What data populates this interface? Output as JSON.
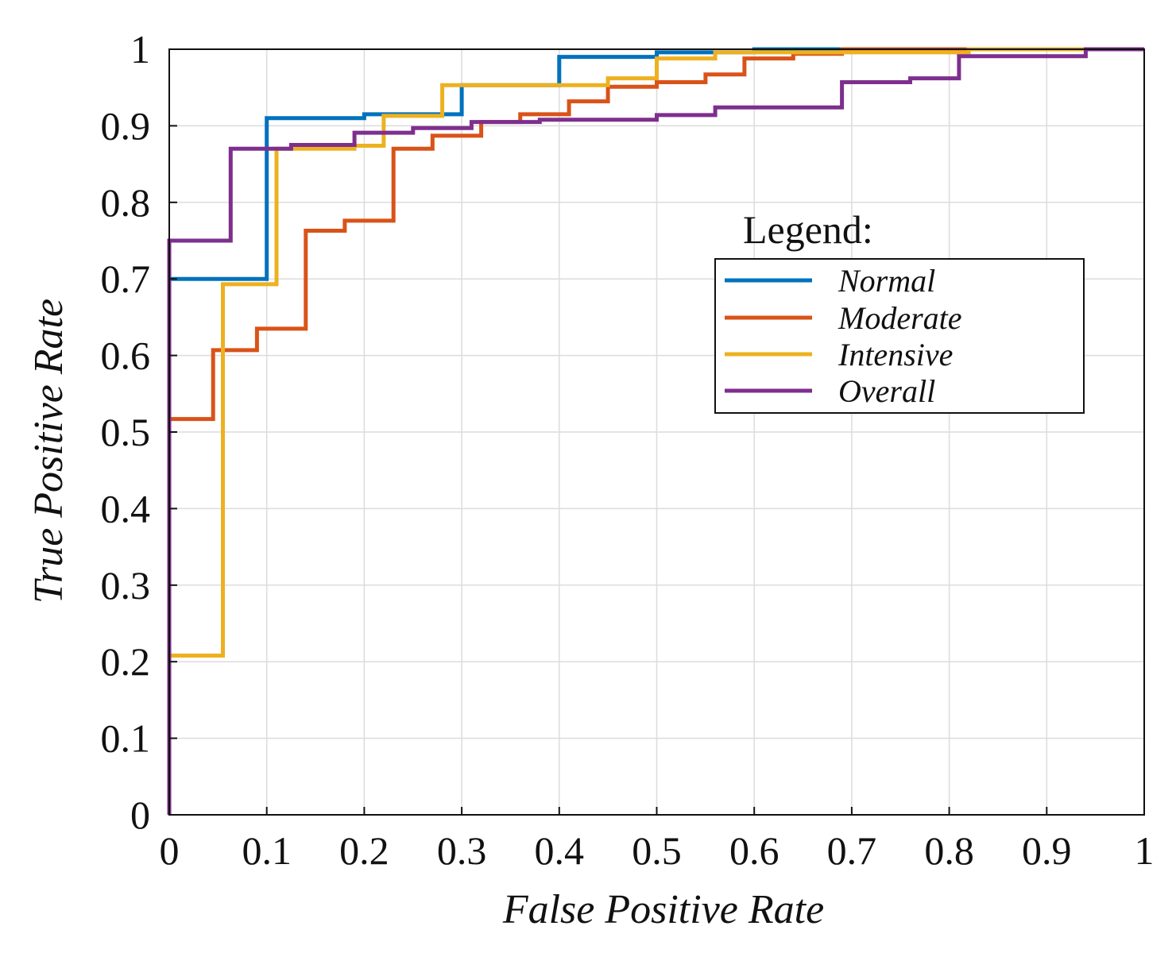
{
  "chart_data": {
    "type": "line",
    "title": "",
    "xlabel": "False Positive Rate",
    "ylabel": "True Positive Rate",
    "xlim": [
      0,
      1
    ],
    "ylim": [
      0,
      1
    ],
    "grid": true,
    "x_ticks": [
      0,
      0.1,
      0.2,
      0.3,
      0.4,
      0.5,
      0.6,
      0.7,
      0.8,
      0.9,
      1
    ],
    "x_tick_labels": [
      "0",
      "0.1",
      "0.2",
      "0.3",
      "0.4",
      "0.5",
      "0.6",
      "0.7",
      "0.8",
      "0.9",
      "1"
    ],
    "y_ticks": [
      0,
      0.1,
      0.2,
      0.3,
      0.4,
      0.5,
      0.6,
      0.7,
      0.8,
      0.9,
      1
    ],
    "y_tick_labels": [
      "0",
      "0.1",
      "0.2",
      "0.3",
      "0.4",
      "0.5",
      "0.6",
      "0.7",
      "0.8",
      "0.9",
      "1"
    ],
    "legend": {
      "title": "Legend:",
      "position": "center-right"
    },
    "series": [
      {
        "name": "Normal",
        "color": "#0072bd",
        "x": [
          0,
          0,
          0.1,
          0.1,
          0.2,
          0.2,
          0.3,
          0.3,
          0.4,
          0.4,
          0.5,
          0.5,
          0.6,
          0.6,
          0.68,
          0.68,
          1
        ],
        "y": [
          0,
          0.7,
          0.7,
          0.91,
          0.91,
          0.915,
          0.915,
          0.953,
          0.953,
          0.99,
          0.99,
          0.996,
          0.996,
          1.0,
          1.0,
          1.0,
          1.0
        ]
      },
      {
        "name": "Moderate",
        "color": "#d95319",
        "x": [
          0,
          0,
          0.045,
          0.045,
          0.09,
          0.09,
          0.14,
          0.14,
          0.18,
          0.18,
          0.23,
          0.23,
          0.27,
          0.27,
          0.32,
          0.32,
          0.36,
          0.36,
          0.41,
          0.41,
          0.45,
          0.45,
          0.5,
          0.5,
          0.55,
          0.55,
          0.59,
          0.59,
          0.64,
          0.64,
          0.69,
          0.69,
          1
        ],
        "y": [
          0,
          0.517,
          0.517,
          0.607,
          0.607,
          0.635,
          0.635,
          0.763,
          0.763,
          0.776,
          0.776,
          0.87,
          0.87,
          0.887,
          0.887,
          0.905,
          0.905,
          0.915,
          0.915,
          0.932,
          0.932,
          0.951,
          0.951,
          0.957,
          0.957,
          0.967,
          0.967,
          0.988,
          0.988,
          0.994,
          0.994,
          1.0,
          1.0
        ]
      },
      {
        "name": "Intensive",
        "color": "#edb120",
        "x": [
          0,
          0,
          0.055,
          0.055,
          0.11,
          0.11,
          0.19,
          0.19,
          0.22,
          0.22,
          0.28,
          0.28,
          0.45,
          0.45,
          0.5,
          0.5,
          0.56,
          0.56,
          0.82,
          0.82,
          0.94,
          0.94,
          1
        ],
        "y": [
          0,
          0.208,
          0.208,
          0.693,
          0.693,
          0.87,
          0.87,
          0.874,
          0.874,
          0.913,
          0.913,
          0.953,
          0.953,
          0.962,
          0.962,
          0.988,
          0.988,
          0.996,
          0.996,
          1.0,
          1.0,
          1.0,
          1.0
        ]
      },
      {
        "name": "Overall",
        "color": "#7e2f8e",
        "x": [
          0,
          0,
          0.063,
          0.063,
          0.125,
          0.125,
          0.19,
          0.19,
          0.25,
          0.25,
          0.31,
          0.31,
          0.38,
          0.38,
          0.5,
          0.5,
          0.56,
          0.56,
          0.69,
          0.69,
          0.76,
          0.76,
          0.81,
          0.81,
          0.94,
          0.94,
          1
        ],
        "y": [
          0,
          0.75,
          0.75,
          0.87,
          0.87,
          0.875,
          0.875,
          0.891,
          0.891,
          0.897,
          0.897,
          0.905,
          0.905,
          0.908,
          0.908,
          0.914,
          0.914,
          0.924,
          0.924,
          0.957,
          0.957,
          0.962,
          0.962,
          0.991,
          0.991,
          1.0,
          1.0
        ]
      }
    ]
  }
}
